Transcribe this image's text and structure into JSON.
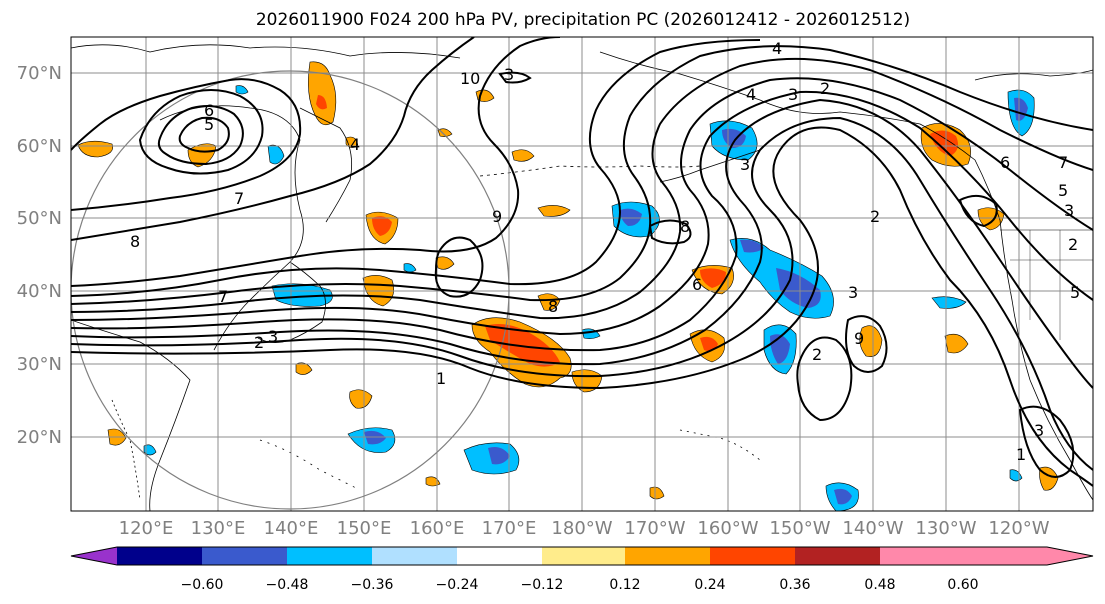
{
  "title": "2026011900 F024 200 hPa PV, precipitation PC (2026012412 - 2026012512)",
  "lat_labels": [
    "70°N",
    "60°N",
    "50°N",
    "40°N",
    "30°N",
    "20°N"
  ],
  "lon_labels": [
    "120°E",
    "130°E",
    "140°E",
    "150°E",
    "160°E",
    "170°E",
    "180°W",
    "170°W",
    "160°W",
    "150°W",
    "140°W",
    "130°W",
    "120°W"
  ],
  "colorbar": {
    "ticks": [
      "−0.60",
      "−0.48",
      "−0.36",
      "−0.24",
      "−0.12",
      "0.12",
      "0.24",
      "0.36",
      "0.48",
      "0.60"
    ],
    "colors": [
      "#9932cc",
      "#00008b",
      "#3a5acd",
      "#00bfff",
      "#b0e0ff",
      "#ffffff",
      "#ffec8b",
      "#ffa500",
      "#ff4500",
      "#b22222",
      "#ff88aa"
    ]
  },
  "contour_labels": [
    "10",
    "3",
    "4",
    "2",
    "3",
    "4",
    "6",
    "5",
    "7",
    "8",
    "9",
    "8",
    "6",
    "8",
    "7",
    "2",
    "3",
    "6",
    "7",
    "5",
    "3",
    "2",
    "5",
    "1",
    "3",
    "2",
    "3",
    "1",
    "9",
    "2",
    "3",
    "4"
  ],
  "fill_colors": {
    "orange": "#ffa500",
    "red": "#ff4500",
    "yellow": "#ffec8b",
    "cyan": "#00bfff",
    "blue": "#3a5acd"
  }
}
